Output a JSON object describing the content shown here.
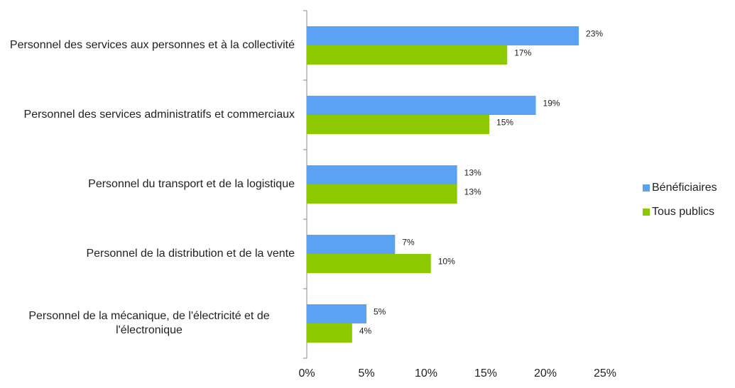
{
  "chart_data": {
    "type": "hbar",
    "categories": [
      "Personnel des services aux personnes et à la collectivité",
      "Personnel des services administratifs et commerciaux",
      "Personnel du transport et de la logistique",
      "Personnel de la distribution et de la vente",
      "Personnel de la mécanique, de l'électricité et de l'électronique"
    ],
    "series": [
      {
        "name": "Bénéficiaires",
        "color": "#5ba3f2",
        "values": [
          22.8,
          19.2,
          12.6,
          7.4,
          5.0
        ],
        "value_labels": [
          "23%",
          "19%",
          "13%",
          "7%",
          "5%"
        ]
      },
      {
        "name": "Tous publics",
        "color": "#8dc900",
        "values": [
          16.8,
          15.3,
          12.6,
          10.4,
          3.8
        ],
        "value_labels": [
          "17%",
          "15%",
          "13%",
          "10%",
          "4%"
        ]
      }
    ],
    "xlim": [
      0,
      25
    ],
    "xticks": [
      {
        "value": 0,
        "label": "0%"
      },
      {
        "value": 5,
        "label": "5%"
      },
      {
        "value": 10,
        "label": "10%"
      },
      {
        "value": 15,
        "label": "15%"
      },
      {
        "value": 20,
        "label": "20%"
      },
      {
        "value": 25,
        "label": "25%"
      }
    ],
    "grid": false,
    "legend": "right"
  }
}
